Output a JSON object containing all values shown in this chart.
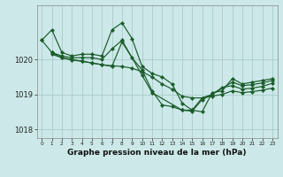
{
  "bg_color": "#cce8e8",
  "grid_color": "#aacccc",
  "line_color": "#1a5c2a",
  "marker_color": "#1a5c2a",
  "xlabel": "Graphe pression niveau de la mer (hPa)",
  "xlabel_fontsize": 6.5,
  "ylim": [
    1017.75,
    1021.55
  ],
  "xlim": [
    -0.5,
    23.5
  ],
  "yticks": [
    1018,
    1019,
    1020
  ],
  "xtick_labels": [
    "0",
    "1",
    "2",
    "3",
    "4",
    "5",
    "6",
    "7",
    "8",
    "9",
    "10",
    "11",
    "12",
    "13",
    "14",
    "15",
    "16",
    "17",
    "18",
    "19",
    "20",
    "21",
    "22",
    "23"
  ],
  "series": [
    {
      "x": [
        0,
        1,
        2,
        3,
        4,
        5,
        6,
        7,
        8,
        9,
        10,
        11,
        12,
        13,
        14,
        15,
        16,
        17,
        18,
        19,
        20,
        21,
        22,
        23
      ],
      "y": [
        1020.55,
        1020.85,
        1020.2,
        1020.1,
        1020.15,
        1020.15,
        1020.1,
        1020.85,
        1021.05,
        1020.6,
        1019.8,
        1019.6,
        1019.5,
        1019.3,
        1018.75,
        1018.55,
        1018.5,
        1019.05,
        1019.1,
        1019.45,
        1019.3,
        1019.35,
        1019.4,
        1019.45
      ]
    },
    {
      "x": [
        1,
        2,
        3,
        4,
        5,
        6,
        7,
        8,
        10,
        11,
        14,
        15,
        16,
        17,
        19,
        20,
        21,
        22,
        23
      ],
      "y": [
        1020.2,
        1020.1,
        1020.05,
        1020.05,
        1020.05,
        1020.0,
        1020.3,
        1020.55,
        1019.55,
        1019.05,
        1018.55,
        1018.55,
        1018.9,
        1019.0,
        1019.35,
        1019.25,
        1019.28,
        1019.33,
        1019.4
      ]
    },
    {
      "x": [
        0,
        1,
        2,
        3,
        4,
        5,
        6,
        7,
        8,
        9,
        10,
        11,
        12,
        13,
        14,
        15,
        16,
        17,
        18,
        19,
        20,
        21,
        22,
        23
      ],
      "y": [
        1020.55,
        1020.2,
        1020.05,
        1019.98,
        1019.95,
        1019.9,
        1019.85,
        1019.82,
        1019.8,
        1019.75,
        1019.65,
        1019.5,
        1019.3,
        1019.15,
        1018.95,
        1018.9,
        1018.9,
        1018.95,
        1019.0,
        1019.1,
        1019.05,
        1019.08,
        1019.12,
        1019.18
      ]
    },
    {
      "x": [
        1,
        2,
        3,
        4,
        5,
        6,
        7,
        8,
        9,
        10,
        11,
        12,
        13,
        14,
        15,
        16,
        17,
        18,
        19,
        20,
        21,
        22,
        23
      ],
      "y": [
        1020.15,
        1020.05,
        1020.0,
        1019.95,
        1019.9,
        1019.85,
        1019.8,
        1020.5,
        1020.05,
        1019.7,
        1019.1,
        1018.7,
        1018.65,
        1018.55,
        1018.52,
        1018.85,
        1019.0,
        1019.2,
        1019.25,
        1019.15,
        1019.18,
        1019.23,
        1019.32
      ]
    }
  ]
}
